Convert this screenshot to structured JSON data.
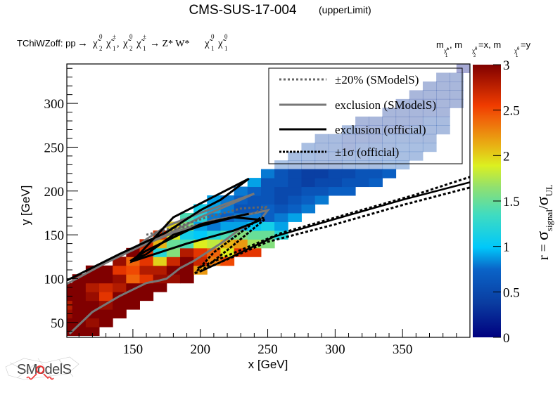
{
  "chart_data": {
    "type": "heatmap",
    "title": "CMS-SUS-17-004",
    "title_suffix": "(upperLimit)",
    "process_prefix": "TChiWZoff: pp",
    "process_parts": [
      "→",
      "χ̃",
      "0",
      "2",
      "χ̃",
      "±",
      "1",
      ",",
      "χ̃",
      "0",
      "2",
      "χ̃",
      "±",
      "1",
      "→ Z* W*",
      "χ̃",
      "0",
      "1",
      "χ̃",
      "0",
      "1"
    ],
    "process_text": "TChiWZoff: pp → χ̃⁰₂ χ̃±₁, χ̃⁰₂ χ̃±₁ → Z* W* χ̃⁰₁ χ̃⁰₁",
    "mass_assignment": "m_χ̃±1, m_χ̃02=x, m_χ̃01=y",
    "mass_parts": {
      "m1": "m",
      "sub1": "χ̃",
      "sup1": "±",
      "idx1": "1",
      "m2": ", m",
      "sub2": "χ̃",
      "sup2": "0",
      "idx2": "2",
      "eq2": "=x, m",
      "sub3": "χ̃",
      "sup3": "0",
      "idx3": "1",
      "eq3": "=y"
    },
    "xlabel": "x [GeV]",
    "ylabel": "y [GeV]",
    "zlabel": "r = σsignal/σUL",
    "zlabel_parts": {
      "r": "r = ",
      "sig": "σ",
      "signal": "signal",
      "slash": "/",
      "sig2": "σ",
      "ul": "UL"
    },
    "xlim": [
      101,
      400
    ],
    "ylim": [
      33,
      345
    ],
    "zlim": [
      0,
      3
    ],
    "xticks": [
      150,
      200,
      250,
      300,
      350
    ],
    "xtick_labels": [
      "150",
      "200",
      "250",
      "300",
      "350"
    ],
    "yticks": [
      50,
      100,
      150,
      200,
      250,
      300
    ],
    "ytick_labels": [
      "50",
      "100",
      "150",
      "200",
      "250",
      "300"
    ],
    "zticks": [
      0,
      0.5,
      1,
      1.5,
      2,
      2.5,
      3
    ],
    "ztick_labels": [
      "0",
      "0.5",
      "1",
      "1.5",
      "2",
      "2.5",
      "3"
    ],
    "legend": {
      "placement": "top-right",
      "entries": [
        {
          "label": "±20% (SModelS)",
          "style": "dotted",
          "color": "#666666"
        },
        {
          "label": "exclusion (SModelS)",
          "style": "solid",
          "color": "#777777"
        },
        {
          "label": "exclusion (official)",
          "style": "solid",
          "color": "#000000"
        },
        {
          "label": "±1σ (official)",
          "style": "dotted",
          "color": "#000000"
        }
      ]
    },
    "cell_size": [
      10,
      10
    ],
    "band": {
      "description_values": "r per cell: diagonal band of cells, r decreasing with x",
      "rows": [
        {
          "y": 40,
          "x_from": 100,
          "x_to": 120,
          "r": [
            3.0,
            3.0,
            3.0
          ]
        },
        {
          "y": 50,
          "x_from": 100,
          "x_to": 130,
          "r": [
            3.0,
            3.0,
            2.9,
            3.0
          ]
        },
        {
          "y": 60,
          "x_from": 100,
          "x_to": 140,
          "r": [
            2.9,
            3.0,
            3.0,
            3.0,
            3.0
          ]
        },
        {
          "y": 70,
          "x_from": 100,
          "x_to": 150,
          "r": [
            2.8,
            3.0,
            3.0,
            2.9,
            3.0,
            3.0
          ]
        },
        {
          "y": 80,
          "x_from": 100,
          "x_to": 160,
          "r": [
            3.0,
            3.0,
            2.9,
            2.6,
            3.0,
            3.0,
            3.0
          ]
        },
        {
          "y": 90,
          "x_from": 100,
          "x_to": 170,
          "r": [
            3.0,
            3.0,
            2.8,
            2.7,
            2.8,
            3.0,
            3.0,
            3.0
          ]
        },
        {
          "y": 100,
          "x_from": 110,
          "x_to": 190,
          "r": [
            3.0,
            3.0,
            3.0,
            2.9,
            2.4,
            2.6,
            2.9,
            2.9,
            3.0
          ]
        },
        {
          "y": 110,
          "x_from": 120,
          "x_to": 200,
          "r": [
            3.0,
            3.0,
            2.6,
            2.5,
            2.8,
            2.8,
            3.0,
            3.0,
            2.2
          ]
        },
        {
          "y": 120,
          "x_from": 140,
          "x_to": 220,
          "r": [
            2.9,
            2.4,
            2.6,
            2.0,
            2.7,
            3.0,
            2.7,
            2.3,
            2.5
          ]
        },
        {
          "y": 130,
          "x_from": 150,
          "x_to": 240,
          "r": [
            3.0,
            2.6,
            1.2,
            1.6,
            2.8,
            2.6,
            2.4,
            1.9,
            2.6,
            2.6
          ]
        },
        {
          "y": 140,
          "x_from": 160,
          "x_to": 250,
          "r": [
            2.7,
            2.1,
            1.5,
            1.4,
            1.9,
            1.8,
            2.1,
            2.2,
            1.7,
            1.6
          ]
        },
        {
          "y": 150,
          "x_from": 170,
          "x_to": 260,
          "r": [
            2.6,
            1.9,
            1.1,
            1.0,
            1.2,
            1.4,
            1.6,
            1.5,
            1.5,
            1.2
          ]
        },
        {
          "y": 160,
          "x_from": 180,
          "x_to": 260,
          "r": [
            2.0,
            1.6,
            0.9,
            0.8,
            0.9,
            0.9,
            1.0,
            1.1,
            0.9
          ]
        },
        {
          "y": 170,
          "x_from": 190,
          "x_to": 270,
          "r": [
            1.4,
            1.2,
            0.8,
            0.7,
            0.8,
            0.8,
            0.7,
            0.8,
            0.9
          ]
        },
        {
          "y": 180,
          "x_from": 200,
          "x_to": 280,
          "r": [
            1.1,
            0.9,
            0.8,
            0.6,
            0.6,
            0.7,
            0.6,
            0.7,
            0.8
          ]
        },
        {
          "y": 190,
          "x_from": 210,
          "x_to": 290,
          "r": [
            0.9,
            0.8,
            0.7,
            0.6,
            0.6,
            0.5,
            0.6,
            0.7,
            0.8
          ]
        },
        {
          "y": 200,
          "x_from": 230,
          "x_to": 310,
          "r": [
            0.8,
            0.7,
            0.6,
            0.5,
            0.5,
            0.6,
            0.6,
            0.7,
            0.7
          ]
        },
        {
          "y": 210,
          "x_from": 240,
          "x_to": 330,
          "r": [
            0.9,
            0.6,
            0.6,
            0.5,
            0.4,
            0.5,
            0.5,
            0.6,
            0.6,
            0.7
          ]
        },
        {
          "y": 220,
          "x_from": 250,
          "x_to": 340,
          "r": [
            0.8,
            0.6,
            0.5,
            0.4,
            0.4,
            0.5,
            0.5,
            0.6,
            0.6,
            0.7
          ]
        },
        {
          "y": 230,
          "x_from": 260,
          "x_to": 350,
          "r": [
            0.6,
            0.5,
            0.4,
            0.4,
            0.4,
            0.5,
            0.5,
            0.5,
            0.6,
            0.6
          ]
        },
        {
          "y": 240,
          "x_from": 270,
          "x_to": 360,
          "r": [
            0.5,
            0.5,
            0.4,
            0.4,
            0.4,
            0.4,
            0.5,
            0.5,
            0.5,
            0.5
          ]
        },
        {
          "y": 250,
          "x_from": 280,
          "x_to": 370,
          "r": [
            0.5,
            0.4,
            0.4,
            0.3,
            0.4,
            0.4,
            0.4,
            0.5,
            0.5,
            0.5
          ]
        },
        {
          "y": 260,
          "x_from": 290,
          "x_to": 370,
          "r": [
            0.4,
            0.4,
            0.3,
            0.3,
            0.3,
            0.4,
            0.4,
            0.4,
            0.4
          ]
        },
        {
          "y": 270,
          "x_from": 310,
          "x_to": 380,
          "r": [
            0.4,
            0.3,
            0.3,
            0.3,
            0.3,
            0.4,
            0.4,
            0.4
          ]
        },
        {
          "y": 280,
          "x_from": 320,
          "x_to": 380,
          "r": [
            0.3,
            0.3,
            0.3,
            0.3,
            0.3,
            0.4,
            0.4
          ]
        },
        {
          "y": 290,
          "x_from": 340,
          "x_to": 380,
          "r": [
            0.3,
            0.3,
            0.3,
            0.3,
            0.3
          ]
        },
        {
          "y": 300,
          "x_from": 350,
          "x_to": 390,
          "r": [
            0.3,
            0.3,
            0.3,
            0.3,
            0.3
          ]
        },
        {
          "y": 310,
          "x_from": 360,
          "x_to": 390,
          "r": [
            0.3,
            0.3,
            0.3,
            0.3
          ]
        },
        {
          "y": 320,
          "x_from": 370,
          "x_to": 390,
          "r": [
            0.3,
            0.3,
            0.3
          ]
        },
        {
          "y": 330,
          "x_from": 380,
          "x_to": 390,
          "r": [
            0.3,
            0.3
          ]
        },
        {
          "y": 340,
          "x_from": 395,
          "x_to": 395,
          "r": [
            0.05
          ]
        }
      ]
    },
    "curves": {
      "smodels_exclusion": [
        [
          101,
          94
        ],
        [
          130,
          118
        ],
        [
          160,
          140
        ],
        [
          175,
          150
        ],
        [
          200,
          170
        ],
        [
          215,
          180
        ],
        [
          230,
          190
        ],
        [
          240,
          197
        ],
        [
          200,
          175
        ],
        [
          175,
          160
        ],
        [
          160,
          145
        ],
        [
          150,
          133
        ],
        [
          160,
          140
        ],
        [
          185,
          155
        ],
        [
          210,
          167
        ],
        [
          235,
          173
        ],
        [
          250,
          178
        ],
        [
          245,
          168
        ],
        [
          230,
          157
        ],
        [
          215,
          140
        ],
        [
          195,
          120
        ],
        [
          185,
          112
        ],
        [
          175,
          100
        ],
        [
          170,
          98
        ],
        [
          160,
          95
        ],
        [
          140,
          80
        ],
        [
          120,
          62
        ],
        [
          103,
          37
        ]
      ],
      "smodels_pm20": [
        [
          160,
          150
        ],
        [
          180,
          158
        ],
        [
          205,
          170
        ],
        [
          230,
          180
        ],
        [
          250,
          182
        ],
        [
          240,
          175
        ],
        [
          220,
          170
        ],
        [
          200,
          162
        ],
        [
          185,
          158
        ],
        [
          170,
          152
        ],
        [
          165,
          150
        ]
      ],
      "official_exclusion": [
        [
          101,
          98
        ],
        [
          140,
          128
        ],
        [
          175,
          153
        ],
        [
          200,
          178
        ],
        [
          215,
          190
        ],
        [
          236,
          214
        ],
        [
          180,
          170
        ],
        [
          150,
          120
        ],
        [
          190,
          140
        ],
        [
          225,
          155
        ],
        [
          245,
          167
        ],
        [
          225,
          170
        ],
        [
          200,
          160
        ],
        [
          180,
          150
        ],
        [
          160,
          128
        ],
        [
          148,
          120
        ],
        [
          160,
          132
        ],
        [
          200,
          162
        ],
        [
          236,
          174
        ]
      ],
      "official_exclusion_outer": [
        [
          200,
          108
        ],
        [
          255,
          148
        ],
        [
          300,
          168
        ],
        [
          350,
          190
        ],
        [
          400,
          210
        ]
      ],
      "official_pm1sigma_upper": [
        [
          198,
          112
        ],
        [
          260,
          152
        ],
        [
          310,
          174
        ],
        [
          360,
          196
        ],
        [
          400,
          216
        ]
      ],
      "official_pm1sigma_lower": [
        [
          196,
          106
        ],
        [
          250,
          142
        ],
        [
          300,
          162
        ],
        [
          350,
          184
        ],
        [
          400,
          204
        ]
      ],
      "official_loop_close": [
        [
          200,
          108
        ],
        [
          222,
          135
        ],
        [
          248,
          168
        ],
        [
          245,
          170
        ],
        [
          210,
          130
        ],
        [
          196,
          106
        ]
      ]
    }
  },
  "logo": {
    "text": "SModelS"
  },
  "colors": {
    "background": "#ffffff",
    "frame": "#000000",
    "smodels_line": "#777777",
    "official_line": "#000000"
  }
}
